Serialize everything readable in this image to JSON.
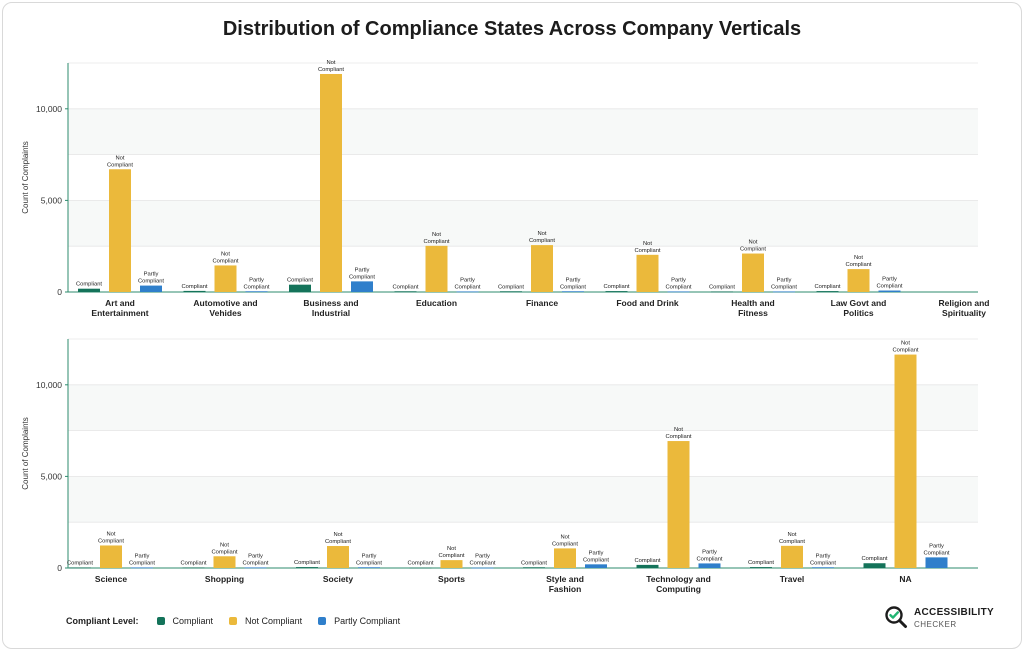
{
  "title": "Distribution of Compliance States Across Company Verticals",
  "legend": {
    "title": "Compliant Level:",
    "items": [
      "Compliant",
      "Not Compliant",
      "Partly Compliant"
    ]
  },
  "colors": {
    "Compliant": "#14735a",
    "Not Compliant": "#ebb93b",
    "Partly Compliant": "#2f7fcb"
  },
  "logo": {
    "line1": "ACCESSIBILITY",
    "line2": "CHECKER"
  },
  "chart_data": [
    {
      "type": "bar",
      "ylabel": "Count of Complaints",
      "ylim": [
        0,
        12500
      ],
      "yticks": [
        0,
        5000,
        10000
      ],
      "ytick_labels": [
        "0",
        "5,000",
        "10,000"
      ],
      "grid": true,
      "categories": [
        "Art and Entertainment",
        "Automotive and Vehides",
        "Business and Industrial",
        "Education",
        "Finance",
        "Food and Drink",
        "Health and Fitness",
        "Law Govt and Politics",
        "Religion and Spirituality"
      ],
      "series": [
        {
          "name": "Compliant",
          "values": [
            180,
            60,
            400,
            40,
            40,
            50,
            30,
            50,
            0
          ]
        },
        {
          "name": "Not Compliant",
          "values": [
            6700,
            1450,
            11900,
            2520,
            2560,
            2030,
            2100,
            1250,
            0
          ]
        },
        {
          "name": "Partly Compliant",
          "values": [
            350,
            40,
            580,
            30,
            40,
            30,
            30,
            80,
            0
          ]
        }
      ]
    },
    {
      "type": "bar",
      "ylabel": "Count of Complaints",
      "ylim": [
        0,
        12500
      ],
      "yticks": [
        0,
        5000,
        10000
      ],
      "ytick_labels": [
        "0",
        "5,000",
        "10,000"
      ],
      "grid": true,
      "categories": [
        "Science",
        "Shopping",
        "Society",
        "Sports",
        "Style and Fashion",
        "Technology and Computing",
        "Travel",
        "NA"
      ],
      "series": [
        {
          "name": "Compliant",
          "values": [
            30,
            30,
            50,
            20,
            40,
            170,
            50,
            260
          ]
        },
        {
          "name": "Not Compliant",
          "values": [
            1230,
            640,
            1200,
            430,
            1070,
            6930,
            1210,
            11650
          ]
        },
        {
          "name": "Partly Compliant",
          "values": [
            30,
            30,
            40,
            20,
            200,
            250,
            40,
            580
          ]
        }
      ]
    }
  ]
}
